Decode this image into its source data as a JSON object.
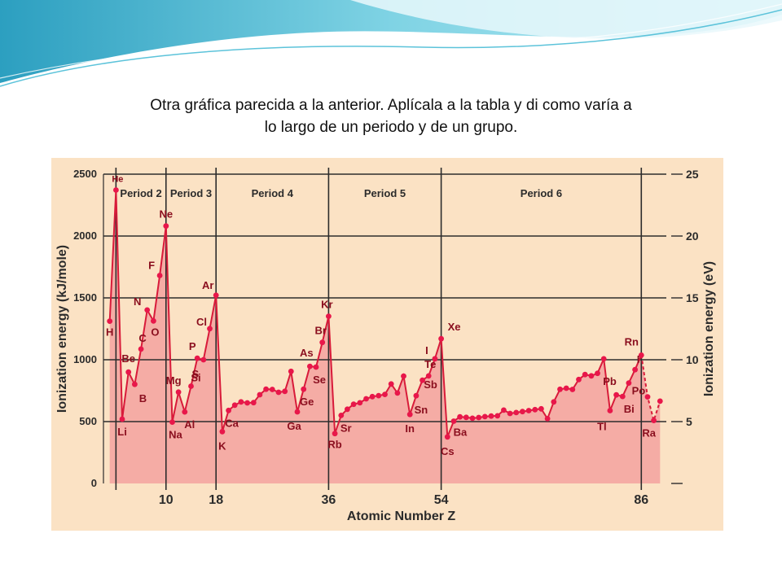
{
  "slide": {
    "instruction_line1": "Otra gráfica parecida a la anterior. Aplícala a la tabla y di como varía a",
    "instruction_line2": "lo largo de un periodo y de un grupo."
  },
  "colors": {
    "area_fill": "#f4a6a2",
    "line": "#d81b3a",
    "point": "#e8174a",
    "grid": "#2c2c2c",
    "label": "#8a0e1e",
    "panel_bg": "#fbe2c4"
  },
  "chart_data": {
    "type": "area",
    "title": "",
    "xlabel": "Atomic Number Z",
    "ylabel": "Ionization energy (kJ/mole)",
    "y2label": "Ionization energy (eV)",
    "xlim": [
      0,
      90
    ],
    "ylim": [
      0,
      2500
    ],
    "y2lim": [
      0,
      25
    ],
    "xticks": [
      10,
      18,
      36,
      54,
      86
    ],
    "yticks": [
      0,
      500,
      1000,
      1500,
      2000,
      2500
    ],
    "y2ticks": [
      5,
      10,
      15,
      20,
      25
    ],
    "period_boundaries": [
      2,
      10,
      18,
      36,
      54,
      86
    ],
    "period_labels": [
      "Period 2",
      "Period 3",
      "Period 4",
      "Period 5",
      "Period 6"
    ],
    "grid": true,
    "series": [
      {
        "x": [
          1,
          2,
          3,
          4,
          5,
          6,
          7,
          8,
          9,
          10,
          11,
          12,
          13,
          14,
          15,
          16,
          17,
          18,
          19,
          20,
          21,
          22,
          23,
          24,
          25,
          26,
          27,
          28,
          29,
          30,
          31,
          32,
          33,
          34,
          35,
          36,
          37,
          38,
          39,
          40,
          41,
          42,
          43,
          44,
          45,
          46,
          47,
          48,
          49,
          50,
          51,
          52,
          53,
          54,
          55,
          56,
          57,
          58,
          59,
          60,
          61,
          62,
          63,
          64,
          65,
          66,
          67,
          68,
          69,
          70,
          71,
          72,
          73,
          74,
          75,
          76,
          77,
          78,
          79,
          80,
          81,
          82,
          83,
          84,
          85,
          86,
          87,
          88,
          89
        ],
        "y": [
          1312,
          2372,
          520,
          900,
          801,
          1086,
          1402,
          1314,
          1681,
          2081,
          496,
          738,
          578,
          786,
          1012,
          1000,
          1251,
          1521,
          419,
          590,
          633,
          659,
          651,
          653,
          717,
          762,
          760,
          737,
          745,
          906,
          579,
          762,
          947,
          941,
          1140,
          1351,
          403,
          550,
          600,
          640,
          652,
          684,
          702,
          710,
          720,
          804,
          731,
          868,
          558,
          709,
          834,
          869,
          1008,
          1170,
          376,
          503,
          538,
          534,
          527,
          533,
          540,
          545,
          547,
          593,
          566,
          573,
          581,
          589,
          597,
          603,
          524,
          659,
          761,
          770,
          760,
          840,
          880,
          870,
          890,
          1007,
          589,
          716,
          703,
          812,
          920,
          1037,
          700,
          509,
          665
        ]
      }
    ],
    "element_labels": [
      {
        "z": 1,
        "symbol": "H"
      },
      {
        "z": 2,
        "symbol": "He"
      },
      {
        "z": 3,
        "symbol": "Li"
      },
      {
        "z": 4,
        "symbol": "Be"
      },
      {
        "z": 5,
        "symbol": "B"
      },
      {
        "z": 6,
        "symbol": "C"
      },
      {
        "z": 7,
        "symbol": "N"
      },
      {
        "z": 8,
        "symbol": "O"
      },
      {
        "z": 9,
        "symbol": "F"
      },
      {
        "z": 10,
        "symbol": "Ne"
      },
      {
        "z": 11,
        "symbol": "Na"
      },
      {
        "z": 12,
        "symbol": "Mg"
      },
      {
        "z": 13,
        "symbol": "Al"
      },
      {
        "z": 14,
        "symbol": "Si"
      },
      {
        "z": 15,
        "symbol": "P"
      },
      {
        "z": 16,
        "symbol": "S"
      },
      {
        "z": 17,
        "symbol": "Cl"
      },
      {
        "z": 18,
        "symbol": "Ar"
      },
      {
        "z": 19,
        "symbol": "K"
      },
      {
        "z": 20,
        "symbol": "Ca"
      },
      {
        "z": 31,
        "symbol": "Ga"
      },
      {
        "z": 32,
        "symbol": "Ge"
      },
      {
        "z": 33,
        "symbol": "As"
      },
      {
        "z": 34,
        "symbol": "Se"
      },
      {
        "z": 35,
        "symbol": "Br"
      },
      {
        "z": 36,
        "symbol": "Kr"
      },
      {
        "z": 37,
        "symbol": "Rb"
      },
      {
        "z": 38,
        "symbol": "Sr"
      },
      {
        "z": 49,
        "symbol": "In"
      },
      {
        "z": 50,
        "symbol": "Sn"
      },
      {
        "z": 51,
        "symbol": "Sb"
      },
      {
        "z": 52,
        "symbol": "Te"
      },
      {
        "z": 53,
        "symbol": "I"
      },
      {
        "z": 54,
        "symbol": "Xe"
      },
      {
        "z": 55,
        "symbol": "Cs"
      },
      {
        "z": 56,
        "symbol": "Ba"
      },
      {
        "z": 81,
        "symbol": "Tl"
      },
      {
        "z": 82,
        "symbol": "Pb"
      },
      {
        "z": 83,
        "symbol": "Bi"
      },
      {
        "z": 84,
        "symbol": "Po"
      },
      {
        "z": 85,
        "symbol": "I"
      },
      {
        "z": 86,
        "symbol": "Rn"
      },
      {
        "z": 88,
        "symbol": "Ra"
      }
    ]
  }
}
